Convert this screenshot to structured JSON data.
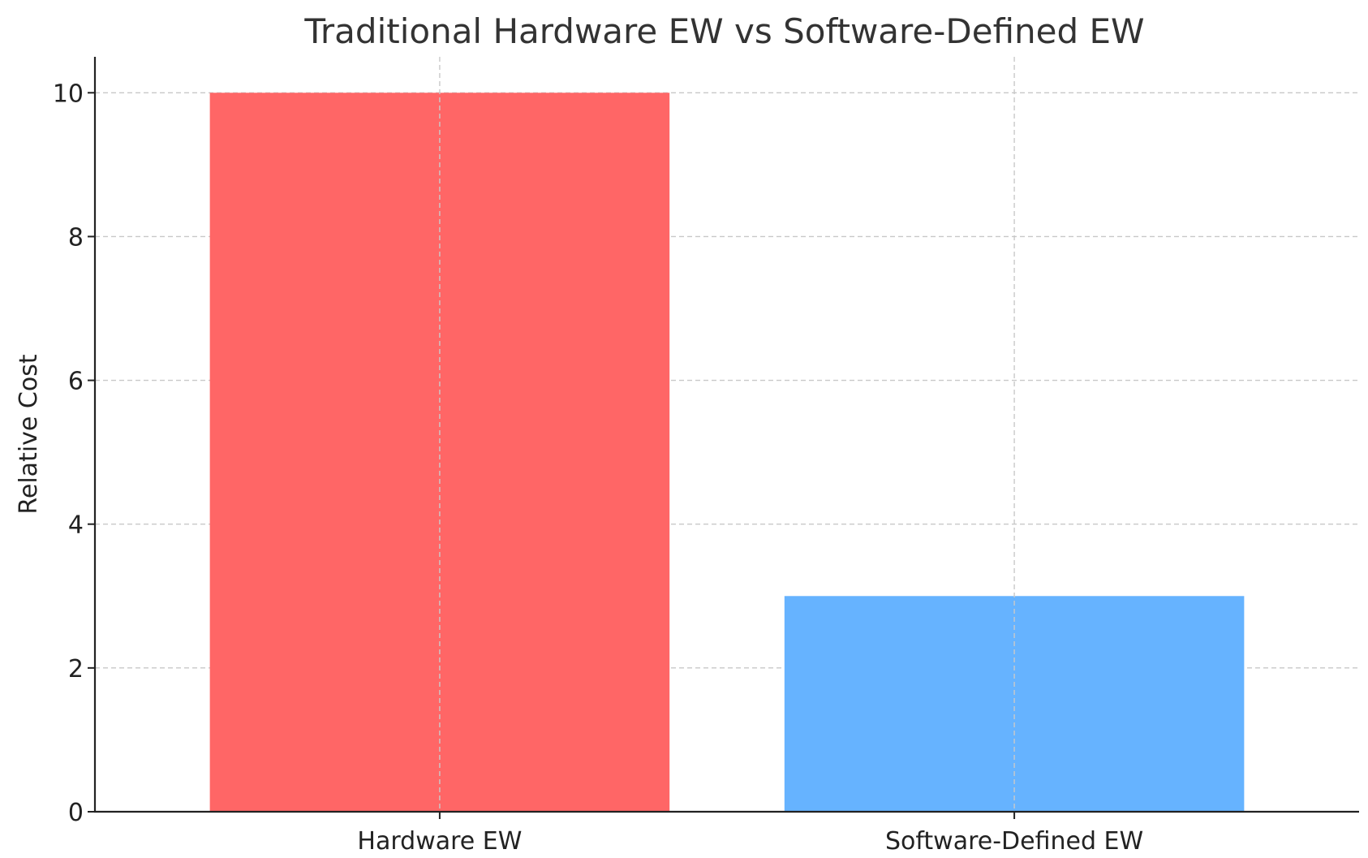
{
  "chart_data": {
    "type": "bar",
    "title": "Traditional Hardware EW vs Software-Defined EW",
    "xlabel": "",
    "ylabel": "Relative Cost",
    "categories": [
      "Hardware EW",
      "Software-Defined EW"
    ],
    "values": [
      10,
      3
    ],
    "colors": [
      "#ff6666",
      "#66b3ff"
    ],
    "ylim": [
      0,
      10.5
    ],
    "yticks": [
      0,
      2,
      4,
      6,
      8,
      10
    ],
    "grid": true,
    "legend": "none"
  }
}
